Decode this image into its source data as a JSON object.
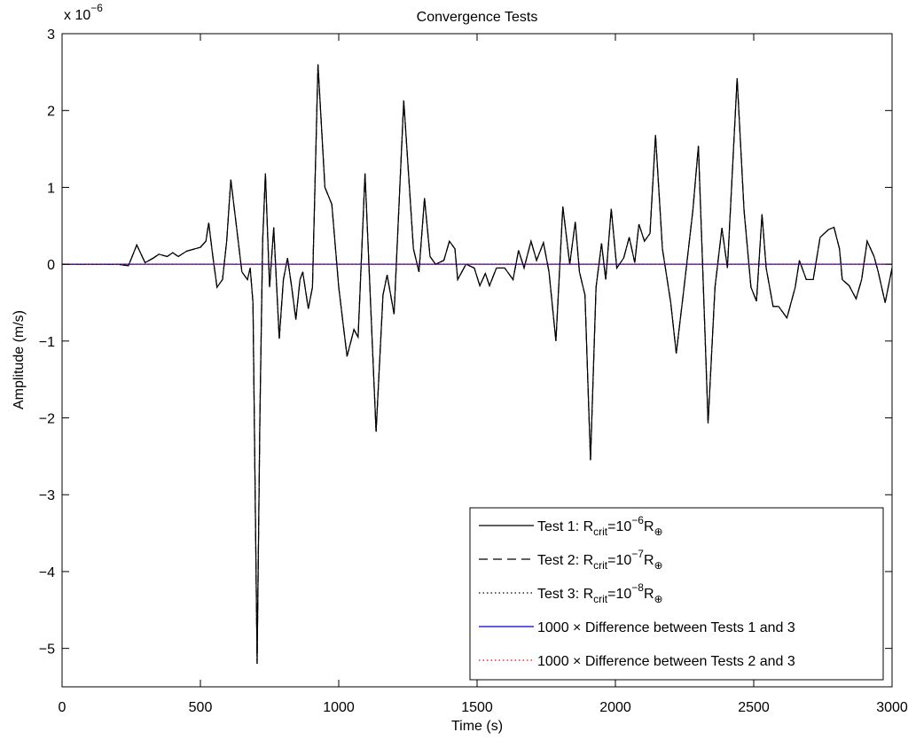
{
  "chart_data": {
    "type": "line",
    "title": "Convergence Tests",
    "xlabel": "Time (s)",
    "ylabel": "Amplitude (m/s)",
    "axis_multiplier": {
      "base": "x 10",
      "exponent": "−6"
    },
    "xlim": [
      0,
      3000
    ],
    "ylim": [
      -5.5,
      3
    ],
    "xticks": [
      0,
      500,
      1000,
      1500,
      2000,
      2500,
      3000
    ],
    "yticks": [
      {
        "value": -5,
        "label": "−5"
      },
      {
        "value": -4,
        "label": "−4"
      },
      {
        "value": -3,
        "label": "−3"
      },
      {
        "value": -2,
        "label": "−2"
      },
      {
        "value": -1,
        "label": "−1"
      },
      0,
      1,
      2,
      3
    ],
    "legend": "lower right",
    "grid": false,
    "x": [
      0,
      200,
      240,
      270,
      300,
      330,
      350,
      380,
      400,
      420,
      450,
      480,
      500,
      520,
      530,
      545,
      560,
      580,
      595,
      610,
      630,
      650,
      670,
      680,
      690,
      705,
      715,
      725,
      735,
      750,
      765,
      785,
      800,
      815,
      830,
      845,
      860,
      870,
      890,
      905,
      925,
      950,
      975,
      1000,
      1030,
      1055,
      1070,
      1095,
      1115,
      1135,
      1160,
      1175,
      1200,
      1235,
      1270,
      1290,
      1310,
      1330,
      1350,
      1380,
      1400,
      1420,
      1430,
      1445,
      1460,
      1490,
      1510,
      1530,
      1545,
      1570,
      1600,
      1630,
      1650,
      1670,
      1695,
      1715,
      1740,
      1760,
      1785,
      1810,
      1835,
      1855,
      1870,
      1890,
      1910,
      1930,
      1950,
      1965,
      1985,
      2005,
      2030,
      2050,
      2070,
      2085,
      2105,
      2125,
      2145,
      2170,
      2200,
      2220,
      2245,
      2280,
      2300,
      2320,
      2335,
      2360,
      2385,
      2405,
      2440,
      2465,
      2490,
      2510,
      2530,
      2545,
      2570,
      2590,
      2620,
      2650,
      2665,
      2690,
      2715,
      2740,
      2770,
      2790,
      2810,
      2820,
      2845,
      2870,
      2890,
      2910,
      2935,
      2950,
      2975,
      3000
    ],
    "series": [
      {
        "name": [
          "Test 1: R",
          {
            "sub": "crit"
          },
          "=10",
          {
            "sup": "−6"
          },
          "R",
          {
            "sub": "⊕"
          }
        ],
        "color": "#000000",
        "dash": "solid",
        "values": [
          0,
          0,
          -0.02,
          0.25,
          0.02,
          0.08,
          0.13,
          0.1,
          0.15,
          0.1,
          0.17,
          0.2,
          0.22,
          0.3,
          0.54,
          0.1,
          -0.3,
          -0.2,
          0.3,
          1.1,
          0.5,
          -0.1,
          -0.2,
          -0.05,
          -0.5,
          -5.2,
          -2,
          0.3,
          1.18,
          -0.3,
          0.48,
          -0.97,
          -0.2,
          0.08,
          -0.3,
          -0.72,
          -0.2,
          -0.1,
          -0.58,
          -0.3,
          2.6,
          1.0,
          0.78,
          -0.3,
          -1.2,
          -0.85,
          -0.95,
          1.18,
          -0.5,
          -2.18,
          -0.4,
          -0.14,
          -0.65,
          2.13,
          0.2,
          -0.1,
          0.86,
          0.1,
          0.0,
          0.05,
          0.3,
          0.2,
          -0.2,
          -0.1,
          0.0,
          -0.05,
          -0.28,
          -0.12,
          -0.28,
          -0.05,
          -0.05,
          -0.2,
          0.18,
          -0.05,
          0.3,
          0.05,
          0.28,
          -0.1,
          -1.0,
          0.75,
          0.0,
          0.55,
          -0.1,
          -0.4,
          -2.55,
          -0.3,
          0.27,
          -0.2,
          0.72,
          -0.05,
          0.08,
          0.35,
          0.02,
          0.52,
          0.3,
          0.4,
          1.68,
          0.2,
          -0.5,
          -1.16,
          -0.4,
          0.7,
          1.54,
          -0.5,
          -2.07,
          -0.3,
          0.47,
          -0.05,
          2.42,
          0.7,
          -0.3,
          -0.48,
          0.65,
          -0.05,
          -0.55,
          -0.55,
          -0.7,
          -0.3,
          0.05,
          -0.2,
          -0.2,
          0.35,
          0.45,
          0.48,
          0.2,
          -0.2,
          -0.28,
          -0.45,
          -0.2,
          0.3,
          0.1,
          -0.1,
          -0.5,
          -0.05
        ]
      },
      {
        "name": [
          "Test 2: R",
          {
            "sub": "crit"
          },
          "=10",
          {
            "sup": "−7"
          },
          "R",
          {
            "sub": "⊕"
          }
        ],
        "color": "#000000",
        "dash": "dashed",
        "values": [
          0,
          0,
          -0.02,
          0.25,
          0.02,
          0.08,
          0.13,
          0.1,
          0.15,
          0.1,
          0.17,
          0.2,
          0.22,
          0.3,
          0.54,
          0.1,
          -0.3,
          -0.2,
          0.3,
          1.1,
          0.5,
          -0.1,
          -0.2,
          -0.05,
          -0.5,
          -5.2,
          -2,
          0.3,
          1.18,
          -0.3,
          0.48,
          -0.97,
          -0.2,
          0.08,
          -0.3,
          -0.72,
          -0.2,
          -0.1,
          -0.58,
          -0.3,
          2.6,
          1.0,
          0.78,
          -0.3,
          -1.2,
          -0.85,
          -0.95,
          1.18,
          -0.5,
          -2.18,
          -0.4,
          -0.14,
          -0.65,
          2.13,
          0.2,
          -0.1,
          0.86,
          0.1,
          0.0,
          0.05,
          0.3,
          0.2,
          -0.2,
          -0.1,
          0.0,
          -0.05,
          -0.28,
          -0.12,
          -0.28,
          -0.05,
          -0.05,
          -0.2,
          0.18,
          -0.05,
          0.3,
          0.05,
          0.28,
          -0.1,
          -1.0,
          0.75,
          0.0,
          0.55,
          -0.1,
          -0.4,
          -2.55,
          -0.3,
          0.27,
          -0.2,
          0.72,
          -0.05,
          0.08,
          0.35,
          0.02,
          0.52,
          0.3,
          0.4,
          1.68,
          0.2,
          -0.5,
          -1.16,
          -0.4,
          0.7,
          1.54,
          -0.5,
          -2.07,
          -0.3,
          0.47,
          -0.05,
          2.42,
          0.7,
          -0.3,
          -0.48,
          0.65,
          -0.05,
          -0.55,
          -0.55,
          -0.7,
          -0.3,
          0.05,
          -0.2,
          -0.2,
          0.35,
          0.45,
          0.48,
          0.2,
          -0.2,
          -0.28,
          -0.45,
          -0.2,
          0.3,
          0.1,
          -0.1,
          -0.5,
          -0.05
        ]
      },
      {
        "name": [
          "Test 3: R",
          {
            "sub": "crit"
          },
          "=10",
          {
            "sup": "−8"
          },
          "R",
          {
            "sub": "⊕"
          }
        ],
        "color": "#000000",
        "dash": "dotted",
        "values": [
          0,
          0,
          -0.02,
          0.25,
          0.02,
          0.08,
          0.13,
          0.1,
          0.15,
          0.1,
          0.17,
          0.2,
          0.22,
          0.3,
          0.54,
          0.1,
          -0.3,
          -0.2,
          0.3,
          1.1,
          0.5,
          -0.1,
          -0.2,
          -0.05,
          -0.5,
          -5.2,
          -2,
          0.3,
          1.18,
          -0.3,
          0.48,
          -0.97,
          -0.2,
          0.08,
          -0.3,
          -0.72,
          -0.2,
          -0.1,
          -0.58,
          -0.3,
          2.6,
          1.0,
          0.78,
          -0.3,
          -1.2,
          -0.85,
          -0.95,
          1.18,
          -0.5,
          -2.18,
          -0.4,
          -0.14,
          -0.65,
          2.13,
          0.2,
          -0.1,
          0.86,
          0.1,
          0.0,
          0.05,
          0.3,
          0.2,
          -0.2,
          -0.1,
          0.0,
          -0.05,
          -0.28,
          -0.12,
          -0.28,
          -0.05,
          -0.05,
          -0.2,
          0.18,
          -0.05,
          0.3,
          0.05,
          0.28,
          -0.1,
          -1.0,
          0.75,
          0.0,
          0.55,
          -0.1,
          -0.4,
          -2.55,
          -0.3,
          0.27,
          -0.2,
          0.72,
          -0.05,
          0.08,
          0.35,
          0.02,
          0.52,
          0.3,
          0.4,
          1.68,
          0.2,
          -0.5,
          -1.16,
          -0.4,
          0.7,
          1.54,
          -0.5,
          -2.07,
          -0.3,
          0.47,
          -0.05,
          2.42,
          0.7,
          -0.3,
          -0.48,
          0.65,
          -0.05,
          -0.55,
          -0.55,
          -0.7,
          -0.3,
          0.05,
          -0.2,
          -0.2,
          0.35,
          0.45,
          0.48,
          0.2,
          -0.2,
          -0.28,
          -0.45,
          -0.2,
          0.3,
          0.1,
          -0.1,
          -0.5,
          -0.05
        ]
      },
      {
        "name": [
          "1000 × Difference between Tests 1 and 3"
        ],
        "color": "#0000cc",
        "dash": "solid",
        "x": [
          0,
          3000
        ],
        "values": [
          0,
          0
        ]
      },
      {
        "name": [
          "1000 × Difference between Tests 2 and 3"
        ],
        "color": "#ff0000",
        "dash": "dotted",
        "x": [
          0,
          3000
        ],
        "values": [
          0,
          0
        ]
      }
    ]
  }
}
